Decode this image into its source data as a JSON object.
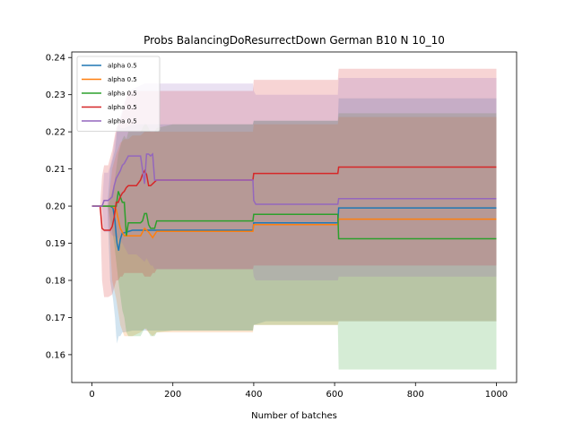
{
  "chart_data": {
    "type": "line",
    "title": "Probs BalancingDoResurrectDown German B10 N 10_10",
    "xlabel": "Number of batches",
    "ylabel": "",
    "xlim": [
      -50,
      1050
    ],
    "ylim": [
      0.1525,
      0.2415
    ],
    "xticks": [
      0,
      200,
      400,
      600,
      800,
      1000
    ],
    "yticks": [
      0.16,
      0.17,
      0.18,
      0.19,
      0.2,
      0.21,
      0.22,
      0.23,
      0.24
    ],
    "grid": false,
    "legend_position": "top-left",
    "series": [
      {
        "name": "alpha 0.5",
        "color": "#1f77b4",
        "x": [
          0,
          20,
          30,
          38,
          45,
          52,
          57,
          60,
          62,
          66,
          70,
          75,
          80,
          100,
          150,
          200,
          300,
          398,
          400,
          430,
          450,
          500,
          600,
          608,
          610,
          700,
          800,
          900,
          1000
        ],
        "y": [
          0.2,
          0.2,
          0.2,
          0.2,
          0.2,
          0.1995,
          0.196,
          0.192,
          0.19,
          0.188,
          0.191,
          0.1928,
          0.1928,
          0.1935,
          0.1935,
          0.1935,
          0.1935,
          0.1935,
          0.1955,
          0.1955,
          0.1955,
          0.1955,
          0.1955,
          0.1955,
          0.1995,
          0.1995,
          0.1995,
          0.1995,
          0.1995
        ],
        "lower": [
          0.2,
          0.2,
          0.2,
          0.2,
          0.18,
          0.175,
          0.17,
          0.165,
          0.163,
          0.165,
          0.165,
          0.166,
          0.166,
          0.1665,
          0.1665,
          0.1665,
          0.1665,
          0.1665,
          0.168,
          0.169,
          0.169,
          0.169,
          0.169,
          0.169,
          0.169,
          0.169,
          0.169,
          0.169,
          0.169
        ],
        "upper": [
          0.2,
          0.2,
          0.2,
          0.2,
          0.21,
          0.213,
          0.215,
          0.218,
          0.221,
          0.222,
          0.221,
          0.221,
          0.221,
          0.222,
          0.222,
          0.222,
          0.222,
          0.222,
          0.223,
          0.223,
          0.223,
          0.223,
          0.223,
          0.223,
          0.229,
          0.229,
          0.229,
          0.229,
          0.229
        ]
      },
      {
        "name": "alpha 0.5",
        "color": "#ff7f0e",
        "x": [
          0,
          20,
          40,
          50,
          60,
          70,
          80,
          90,
          100,
          120,
          130,
          140,
          150,
          160,
          200,
          300,
          398,
          400,
          450,
          500,
          600,
          608,
          610,
          700,
          800,
          900,
          1000
        ],
        "y": [
          0.2,
          0.2,
          0.2,
          0.2,
          0.199,
          0.194,
          0.192,
          0.192,
          0.192,
          0.192,
          0.194,
          0.193,
          0.1915,
          0.1932,
          0.1932,
          0.1932,
          0.1932,
          0.195,
          0.195,
          0.195,
          0.195,
          0.195,
          0.1965,
          0.1965,
          0.1965,
          0.1965,
          0.1965
        ],
        "lower": [
          0.2,
          0.2,
          0.2,
          0.18,
          0.175,
          0.168,
          0.165,
          0.165,
          0.165,
          0.166,
          0.167,
          0.166,
          0.165,
          0.166,
          0.166,
          0.166,
          0.166,
          0.168,
          0.168,
          0.168,
          0.168,
          0.168,
          0.169,
          0.169,
          0.169,
          0.169,
          0.169
        ],
        "upper": [
          0.2,
          0.2,
          0.2,
          0.21,
          0.214,
          0.217,
          0.218,
          0.218,
          0.219,
          0.219,
          0.22,
          0.22,
          0.22,
          0.22,
          0.22,
          0.22,
          0.22,
          0.222,
          0.222,
          0.222,
          0.222,
          0.222,
          0.224,
          0.224,
          0.224,
          0.224,
          0.224
        ]
      },
      {
        "name": "alpha 0.5",
        "color": "#2ca02c",
        "x": [
          0,
          20,
          40,
          55,
          60,
          65,
          75,
          80,
          85,
          90,
          100,
          110,
          120,
          125,
          130,
          135,
          140,
          145,
          150,
          155,
          160,
          200,
          300,
          398,
          400,
          450,
          500,
          600,
          608,
          610,
          700,
          800,
          900,
          1000
        ],
        "y": [
          0.2,
          0.2,
          0.2,
          0.2,
          0.2,
          0.204,
          0.201,
          0.201,
          0.192,
          0.1955,
          0.1955,
          0.1955,
          0.1955,
          0.196,
          0.198,
          0.198,
          0.195,
          0.194,
          0.194,
          0.194,
          0.196,
          0.196,
          0.196,
          0.196,
          0.1978,
          0.1978,
          0.1978,
          0.1978,
          0.1978,
          0.1912,
          0.1912,
          0.1912,
          0.1912,
          0.1912
        ],
        "lower": [
          0.2,
          0.2,
          0.2,
          0.19,
          0.185,
          0.18,
          0.172,
          0.17,
          0.166,
          0.165,
          0.165,
          0.165,
          0.165,
          0.166,
          0.167,
          0.167,
          0.166,
          0.165,
          0.165,
          0.165,
          0.166,
          0.1665,
          0.1665,
          0.1665,
          0.168,
          0.168,
          0.168,
          0.168,
          0.168,
          0.156,
          0.156,
          0.156,
          0.156,
          0.156
        ],
        "upper": [
          0.2,
          0.2,
          0.2,
          0.206,
          0.21,
          0.214,
          0.218,
          0.219,
          0.218,
          0.22,
          0.22,
          0.22,
          0.22,
          0.221,
          0.222,
          0.222,
          0.221,
          0.22,
          0.22,
          0.22,
          0.221,
          0.222,
          0.222,
          0.222,
          0.223,
          0.223,
          0.223,
          0.223,
          0.223,
          0.225,
          0.225,
          0.225,
          0.225,
          0.225
        ]
      },
      {
        "name": "alpha 0.5",
        "color": "#d62728",
        "x": [
          0,
          20,
          25,
          30,
          35,
          40,
          45,
          50,
          55,
          60,
          65,
          70,
          75,
          80,
          85,
          90,
          100,
          110,
          120,
          125,
          130,
          135,
          140,
          145,
          150,
          155,
          160,
          200,
          300,
          398,
          400,
          450,
          500,
          600,
          608,
          610,
          700,
          800,
          900,
          1000
        ],
        "y": [
          0.2,
          0.2,
          0.194,
          0.1935,
          0.1935,
          0.1935,
          0.1935,
          0.1945,
          0.197,
          0.201,
          0.201,
          0.2025,
          0.2035,
          0.204,
          0.205,
          0.2055,
          0.2055,
          0.2055,
          0.207,
          0.2085,
          0.2095,
          0.2085,
          0.2055,
          0.2055,
          0.206,
          0.2065,
          0.207,
          0.207,
          0.207,
          0.207,
          0.2088,
          0.2088,
          0.2088,
          0.2088,
          0.2088,
          0.2105,
          0.2105,
          0.2105,
          0.2105,
          0.2105
        ],
        "lower": [
          0.2,
          0.2,
          0.18,
          0.1755,
          0.1755,
          0.1755,
          0.1758,
          0.1762,
          0.178,
          0.18,
          0.18,
          0.181,
          0.181,
          0.182,
          0.182,
          0.182,
          0.182,
          0.182,
          0.182,
          0.182,
          0.181,
          0.181,
          0.181,
          0.181,
          0.182,
          0.182,
          0.183,
          0.183,
          0.183,
          0.183,
          0.184,
          0.184,
          0.184,
          0.184,
          0.184,
          0.184,
          0.184,
          0.184,
          0.184,
          0.184
        ],
        "upper": [
          0.2,
          0.2,
          0.208,
          0.211,
          0.211,
          0.211,
          0.213,
          0.215,
          0.218,
          0.221,
          0.222,
          0.223,
          0.225,
          0.227,
          0.229,
          0.231,
          0.231,
          0.231,
          0.231,
          0.231,
          0.231,
          0.231,
          0.231,
          0.231,
          0.231,
          0.231,
          0.231,
          0.231,
          0.231,
          0.231,
          0.234,
          0.234,
          0.234,
          0.234,
          0.234,
          0.237,
          0.237,
          0.237,
          0.237,
          0.237
        ]
      },
      {
        "name": "alpha 0.5",
        "color": "#9467bd",
        "x": [
          0,
          25,
          30,
          40,
          45,
          50,
          55,
          60,
          65,
          70,
          75,
          80,
          85,
          90,
          100,
          110,
          120,
          130,
          135,
          140,
          145,
          150,
          155,
          160,
          200,
          300,
          398,
          400,
          405,
          410,
          450,
          500,
          600,
          608,
          610,
          700,
          800,
          900,
          1000
        ],
        "y": [
          0.2,
          0.2,
          0.2015,
          0.2015,
          0.202,
          0.2025,
          0.2055,
          0.2075,
          0.2085,
          0.2095,
          0.211,
          0.2115,
          0.2125,
          0.2135,
          0.2135,
          0.2135,
          0.2135,
          0.206,
          0.214,
          0.214,
          0.2135,
          0.214,
          0.207,
          0.207,
          0.207,
          0.207,
          0.207,
          0.2015,
          0.2005,
          0.2005,
          0.2005,
          0.2005,
          0.2005,
          0.2005,
          0.202,
          0.202,
          0.202,
          0.202,
          0.202
        ],
        "lower": [
          0.2,
          0.2,
          0.193,
          0.193,
          0.193,
          0.192,
          0.192,
          0.1915,
          0.1915,
          0.191,
          0.19,
          0.189,
          0.188,
          0.187,
          0.187,
          0.187,
          0.186,
          0.185,
          0.186,
          0.185,
          0.184,
          0.184,
          0.183,
          0.183,
          0.183,
          0.183,
          0.183,
          0.181,
          0.18,
          0.18,
          0.18,
          0.18,
          0.18,
          0.18,
          0.181,
          0.181,
          0.181,
          0.181,
          0.181
        ],
        "upper": [
          0.2,
          0.2,
          0.209,
          0.209,
          0.211,
          0.213,
          0.217,
          0.22,
          0.222,
          0.224,
          0.226,
          0.228,
          0.229,
          0.2305,
          0.2315,
          0.232,
          0.2325,
          0.233,
          0.233,
          0.233,
          0.233,
          0.233,
          0.233,
          0.233,
          0.233,
          0.233,
          0.233,
          0.231,
          0.23,
          0.23,
          0.23,
          0.23,
          0.23,
          0.23,
          0.2345,
          0.2345,
          0.2345,
          0.2345,
          0.2345
        ]
      }
    ]
  }
}
